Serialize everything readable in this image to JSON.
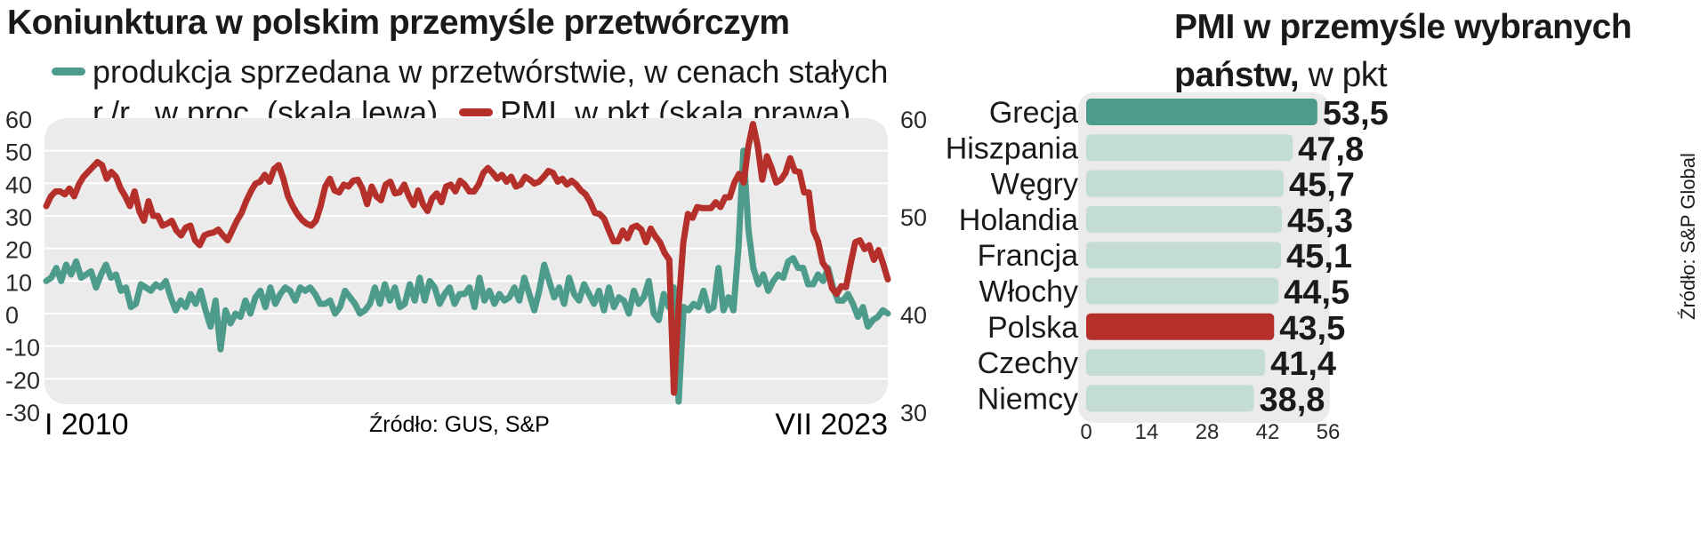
{
  "line_chart": {
    "title": "Koniunktura w polskim przemyśle przetwórczym",
    "legend": [
      {
        "label_line1": "produkcja sprzedana w przetwórstwie, w cenach stałych",
        "label_line2": "r./r., w proc. (skala lewa)",
        "color": "#4d9b8b"
      },
      {
        "label": "PMI, w pkt (skala prawa)",
        "color": "#b5302a"
      }
    ],
    "x_start_label": "I 2010",
    "x_end_label": "VII 2023",
    "source": "Źródło: GUS, S&P"
  },
  "bar_chart": {
    "title_bold_line1": "PMI w przemyśle wybranych",
    "title_bold_line2": "państw,",
    "title_unit": " w pkt",
    "source": "Źródło: S&P Global"
  },
  "chart_data": [
    {
      "type": "line",
      "title": "Koniunktura w polskim przemyśle przetwórczym",
      "x_range": [
        "I 2010",
        "VII 2023"
      ],
      "y_left": {
        "ylim": [
          -30,
          60
        ],
        "ticks": [
          60,
          50,
          40,
          30,
          20,
          10,
          0,
          -10,
          -20,
          -30
        ]
      },
      "y_right": {
        "ylim": [
          30,
          60
        ],
        "ticks": [
          60,
          50,
          40,
          30
        ]
      },
      "series": [
        {
          "name": "produkcja sprzedana w przetwórstwie, w cenach stałych r./r., w proc. (skala lewa)",
          "axis": "left",
          "color": "#4d9b8b",
          "values": [
            10,
            11,
            14,
            10,
            15,
            12,
            16,
            11,
            12,
            13,
            8,
            12,
            15,
            11,
            12,
            7,
            8,
            2,
            3,
            9,
            8,
            7,
            9,
            8,
            10,
            5,
            1,
            4,
            2,
            6,
            3,
            7,
            1,
            -4,
            4,
            -11,
            1,
            -3,
            0,
            -1,
            4,
            0,
            5,
            7,
            2,
            8,
            3,
            6,
            8,
            7,
            4,
            8,
            7,
            8,
            6,
            3,
            3,
            4,
            0,
            2,
            7,
            5,
            3,
            0,
            1,
            3,
            8,
            3,
            9,
            4,
            8,
            2,
            3,
            9,
            4,
            11,
            4,
            10,
            8,
            3,
            6,
            8,
            3,
            6,
            6,
            8,
            2,
            11,
            4,
            7,
            3,
            6,
            4,
            5,
            8,
            4,
            11,
            6,
            1,
            7,
            15,
            10,
            5,
            8,
            3,
            11,
            6,
            4,
            9,
            6,
            3,
            7,
            1,
            8,
            2,
            5,
            4,
            0,
            7,
            3,
            5,
            10,
            0,
            -2,
            6,
            2,
            8,
            -27,
            2,
            1,
            3,
            2,
            7,
            1,
            2,
            14,
            1,
            5,
            1,
            20,
            50,
            26,
            14,
            9,
            12,
            7,
            10,
            12,
            11,
            16,
            17,
            14,
            14,
            9,
            9,
            12,
            10,
            14,
            8,
            4,
            4,
            6,
            3,
            -1,
            2,
            -4,
            -2,
            -1,
            1,
            0
          ]
        },
        {
          "name": "PMI, w pkt (skala prawa)",
          "axis": "right",
          "color": "#b5302a",
          "values": [
            51,
            52,
            52.5,
            52.5,
            52.2,
            52.8,
            52,
            53.2,
            54,
            54.5,
            55,
            55.5,
            55.2,
            53.8,
            54.5,
            54,
            52.8,
            52,
            51,
            52.5,
            50.5,
            49.5,
            51.5,
            50,
            50,
            49,
            49.2,
            49.5,
            48.5,
            48,
            48.8,
            49,
            47.5,
            47,
            48,
            48.2,
            48.3,
            48.6,
            48,
            47.5,
            48.5,
            49.5,
            50.3,
            51.5,
            52.5,
            53.3,
            53.5,
            54.2,
            53.5,
            54.8,
            55.2,
            53.8,
            52,
            51,
            50.2,
            49.6,
            49.2,
            49,
            49.5,
            51,
            53,
            53.8,
            52.6,
            52.4,
            53.2,
            53,
            53.6,
            53.7,
            52.8,
            51.2,
            53,
            52,
            51.6,
            53.2,
            53.5,
            52.3,
            52.4,
            53.2,
            52,
            51.1,
            52.6,
            51.2,
            50.5,
            51.8,
            52.3,
            51.4,
            53,
            53.2,
            52.5,
            53.6,
            53.2,
            52.5,
            52.5,
            53.2,
            54.4,
            54.9,
            54.4,
            53.8,
            54.2,
            53.5,
            54,
            53,
            53.2,
            54,
            53.7,
            53.3,
            53.5,
            54,
            54.6,
            54.4,
            53.5,
            53.8,
            53.2,
            53.6,
            53.2,
            52.6,
            52.2,
            51.4,
            50.3,
            50.2,
            49.7,
            48.5,
            47.4,
            47.4,
            48.5,
            47.7,
            48.8,
            49,
            48.6,
            47.3,
            48.7,
            47.9,
            47.3,
            46.2,
            45.5,
            31.9,
            40.6,
            47.2,
            50.2,
            49.8,
            50.9,
            50.8,
            50.8,
            50.8,
            51.4,
            50.9,
            51.9,
            51.9,
            53.4,
            54.3,
            53.4,
            57.1,
            59.4,
            57.2,
            53.7,
            56.1,
            54.9,
            53.4,
            53.7,
            54.4,
            55.9,
            54.6,
            54.5,
            52.4,
            52.4,
            48.5,
            47.4,
            45.2,
            44.5,
            42.6,
            42,
            42.8,
            42.7,
            45.1,
            47.3,
            47.5,
            46.6,
            47,
            45.5,
            46.5,
            45.1,
            43.5
          ]
        }
      ]
    },
    {
      "type": "bar",
      "title": "PMI w przemyśle wybranych państw, w pkt",
      "categories": [
        "Grecja",
        "Hiszpania",
        "Węgry",
        "Holandia",
        "Francja",
        "Włochy",
        "Polska",
        "Czechy",
        "Niemcy"
      ],
      "values": [
        53.5,
        47.8,
        45.7,
        45.3,
        45.1,
        44.5,
        43.5,
        41.4,
        38.8
      ],
      "value_labels": [
        "53,5",
        "47,8",
        "45,7",
        "45,3",
        "45,1",
        "44,5",
        "43,5",
        "41,4",
        "38,8"
      ],
      "xlim": [
        0,
        56
      ],
      "x_ticks": [
        0,
        14,
        28,
        42,
        56
      ],
      "bar_colors": [
        "#4d9b8b",
        "#c3ddd5",
        "#c3ddd5",
        "#c3ddd5",
        "#c3ddd5",
        "#c3ddd5",
        "#b5302a",
        "#c3ddd5",
        "#c3ddd5"
      ]
    }
  ]
}
